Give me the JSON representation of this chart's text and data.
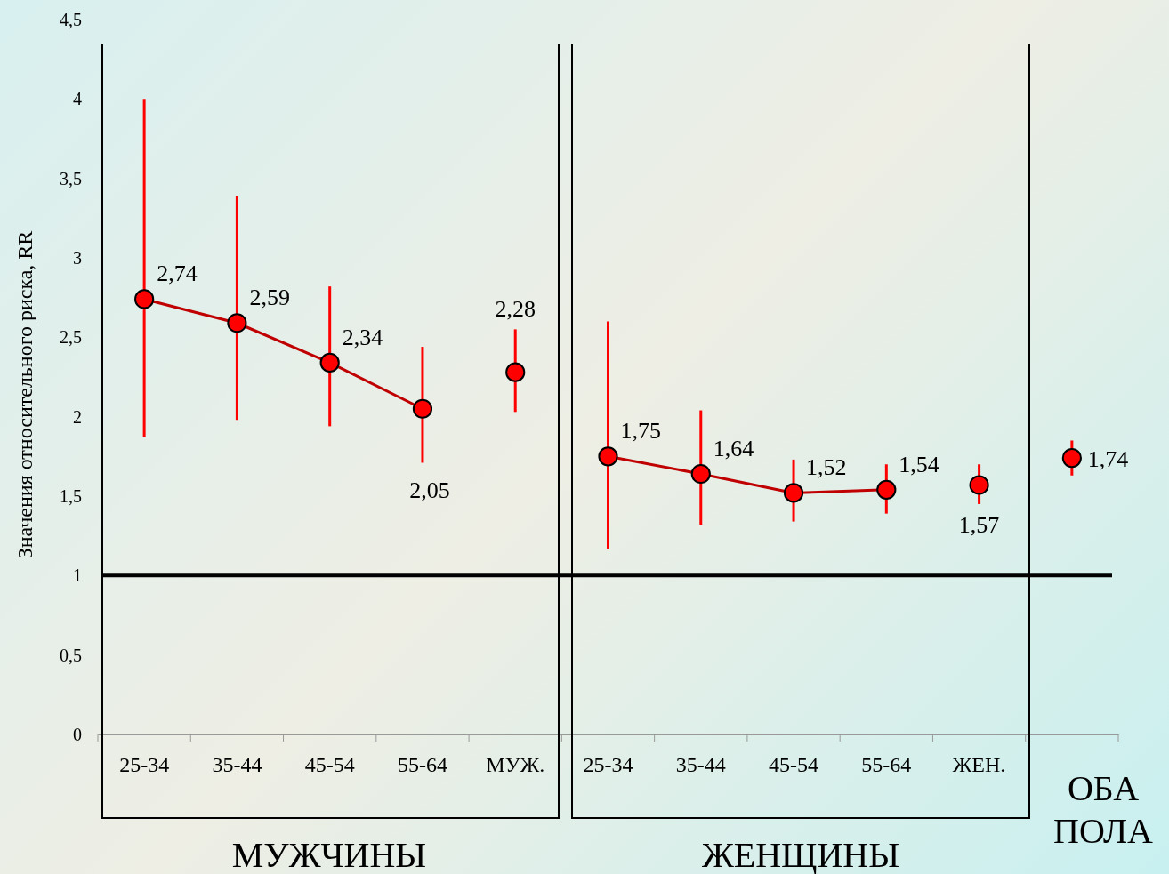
{
  "chart_data": {
    "type": "line",
    "ylabel": "Значения относительного риска, RR",
    "categories": [
      "25-34",
      "35-44",
      "45-54",
      "55-64",
      "МУЖ.",
      "25-34",
      "35-44",
      "45-54",
      "55-64",
      "ЖЕН.",
      null
    ],
    "series": [
      {
        "type": "line",
        "color": "#c00000",
        "values": [
          2.74,
          2.59,
          2.34,
          2.05,
          null,
          null,
          null,
          null,
          null,
          null,
          null
        ],
        "value_labels": [
          "2,74",
          "2,59",
          "2,34",
          "2,05",
          null,
          null,
          null,
          null,
          null,
          null,
          null
        ],
        "errors": [
          [
            1.87,
            4.0
          ],
          [
            1.98,
            3.39
          ],
          [
            1.94,
            2.82
          ],
          [
            1.71,
            2.44
          ],
          null,
          null,
          null,
          null,
          null,
          null,
          null
        ]
      },
      {
        "type": "line",
        "color": "#c00000",
        "values": [
          null,
          null,
          null,
          null,
          null,
          1.75,
          1.64,
          1.52,
          1.54,
          null,
          null
        ],
        "value_labels": [
          null,
          null,
          null,
          null,
          null,
          "1,75",
          "1,64",
          "1,52",
          "1,54",
          null,
          null
        ],
        "errors": [
          null,
          null,
          null,
          null,
          null,
          [
            1.17,
            2.6
          ],
          [
            1.32,
            2.04
          ],
          [
            1.34,
            1.73
          ],
          [
            1.39,
            1.7
          ],
          null,
          null
        ]
      },
      {
        "type": "scatter",
        "color": "#ff0000",
        "values": [
          null,
          null,
          null,
          null,
          2.28,
          null,
          null,
          null,
          null,
          1.57,
          1.74
        ],
        "value_labels": [
          null,
          null,
          null,
          null,
          "2,28",
          null,
          null,
          null,
          null,
          "1,57",
          "1,74"
        ],
        "errors": [
          null,
          null,
          null,
          null,
          [
            2.03,
            2.55
          ],
          null,
          null,
          null,
          null,
          [
            1.45,
            1.7
          ],
          [
            1.63,
            1.85
          ]
        ]
      }
    ],
    "marker": "circle",
    "ylim": [
      0,
      4.5
    ],
    "yticks": [
      0,
      {
        "value": 0.5,
        "label": "0,5"
      },
      1,
      {
        "value": 1.5,
        "label": "1,5"
      },
      2,
      {
        "value": 2.5,
        "label": "2,5"
      },
      3,
      {
        "value": 3.5,
        "label": "3,5"
      },
      4,
      {
        "value": 4.5,
        "label": "4,5"
      }
    ],
    "ref_lines": [
      {
        "axis": "y",
        "value": 1,
        "color": "#000000"
      }
    ],
    "annotations": [
      "МУЖЧИНЫ",
      "ЖЕНЩИНЫ",
      "ОБА ПОЛА"
    ]
  }
}
